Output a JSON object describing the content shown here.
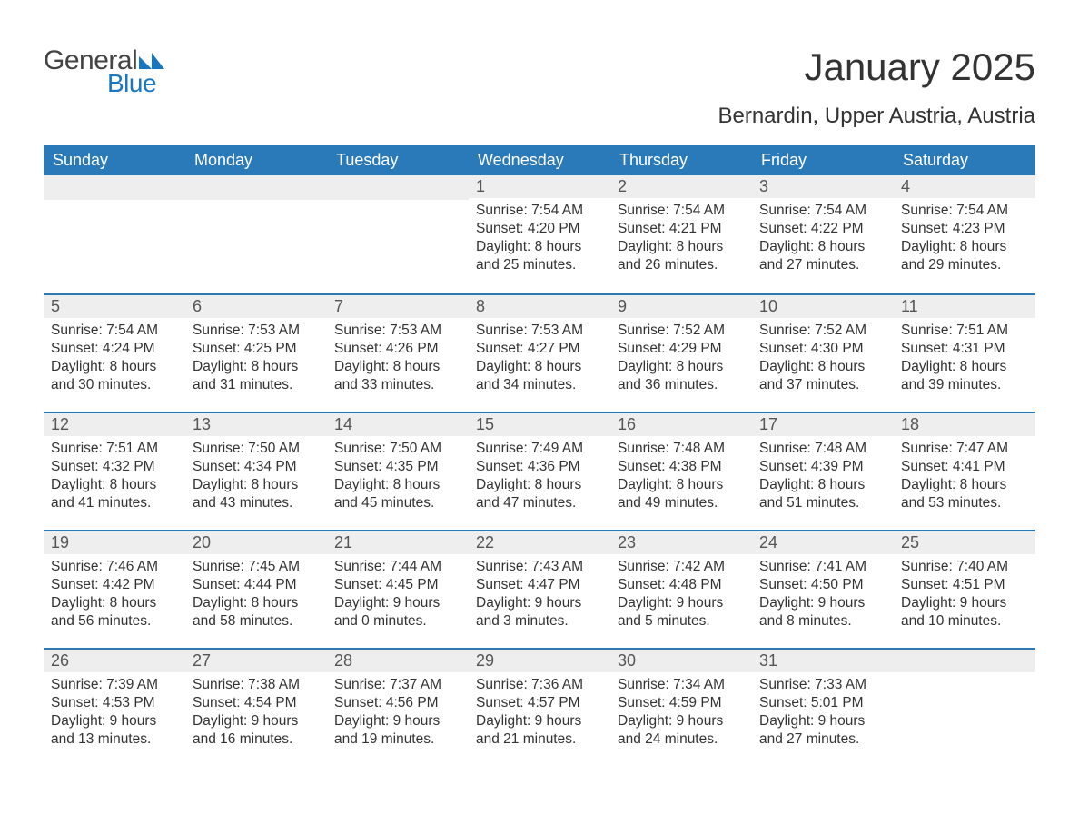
{
  "logo": {
    "text_general": "General",
    "text_blue": "Blue",
    "shape_color": "#1976c1"
  },
  "title": "January 2025",
  "subtitle": "Bernardin, Upper Austria, Austria",
  "colors": {
    "header_bg": "#2a7ab9",
    "header_text": "#ffffff",
    "daynum_bg": "#eeeeee",
    "daynum_border": "#2a7ab9",
    "body_text": "#333333",
    "page_bg": "#ffffff"
  },
  "typography": {
    "title_fontsize": 42,
    "subtitle_fontsize": 24,
    "header_fontsize": 18,
    "daynum_fontsize": 18,
    "body_fontsize": 15.5,
    "logo_fontsize": 30
  },
  "weekdays": [
    "Sunday",
    "Monday",
    "Tuesday",
    "Wednesday",
    "Thursday",
    "Friday",
    "Saturday"
  ],
  "weeks": [
    [
      null,
      null,
      null,
      {
        "n": "1",
        "sunrise": "7:54 AM",
        "sunset": "4:20 PM",
        "dh": "8",
        "dm": "25"
      },
      {
        "n": "2",
        "sunrise": "7:54 AM",
        "sunset": "4:21 PM",
        "dh": "8",
        "dm": "26"
      },
      {
        "n": "3",
        "sunrise": "7:54 AM",
        "sunset": "4:22 PM",
        "dh": "8",
        "dm": "27"
      },
      {
        "n": "4",
        "sunrise": "7:54 AM",
        "sunset": "4:23 PM",
        "dh": "8",
        "dm": "29"
      }
    ],
    [
      {
        "n": "5",
        "sunrise": "7:54 AM",
        "sunset": "4:24 PM",
        "dh": "8",
        "dm": "30"
      },
      {
        "n": "6",
        "sunrise": "7:53 AM",
        "sunset": "4:25 PM",
        "dh": "8",
        "dm": "31"
      },
      {
        "n": "7",
        "sunrise": "7:53 AM",
        "sunset": "4:26 PM",
        "dh": "8",
        "dm": "33"
      },
      {
        "n": "8",
        "sunrise": "7:53 AM",
        "sunset": "4:27 PM",
        "dh": "8",
        "dm": "34"
      },
      {
        "n": "9",
        "sunrise": "7:52 AM",
        "sunset": "4:29 PM",
        "dh": "8",
        "dm": "36"
      },
      {
        "n": "10",
        "sunrise": "7:52 AM",
        "sunset": "4:30 PM",
        "dh": "8",
        "dm": "37"
      },
      {
        "n": "11",
        "sunrise": "7:51 AM",
        "sunset": "4:31 PM",
        "dh": "8",
        "dm": "39"
      }
    ],
    [
      {
        "n": "12",
        "sunrise": "7:51 AM",
        "sunset": "4:32 PM",
        "dh": "8",
        "dm": "41"
      },
      {
        "n": "13",
        "sunrise": "7:50 AM",
        "sunset": "4:34 PM",
        "dh": "8",
        "dm": "43"
      },
      {
        "n": "14",
        "sunrise": "7:50 AM",
        "sunset": "4:35 PM",
        "dh": "8",
        "dm": "45"
      },
      {
        "n": "15",
        "sunrise": "7:49 AM",
        "sunset": "4:36 PM",
        "dh": "8",
        "dm": "47"
      },
      {
        "n": "16",
        "sunrise": "7:48 AM",
        "sunset": "4:38 PM",
        "dh": "8",
        "dm": "49"
      },
      {
        "n": "17",
        "sunrise": "7:48 AM",
        "sunset": "4:39 PM",
        "dh": "8",
        "dm": "51"
      },
      {
        "n": "18",
        "sunrise": "7:47 AM",
        "sunset": "4:41 PM",
        "dh": "8",
        "dm": "53"
      }
    ],
    [
      {
        "n": "19",
        "sunrise": "7:46 AM",
        "sunset": "4:42 PM",
        "dh": "8",
        "dm": "56"
      },
      {
        "n": "20",
        "sunrise": "7:45 AM",
        "sunset": "4:44 PM",
        "dh": "8",
        "dm": "58"
      },
      {
        "n": "21",
        "sunrise": "7:44 AM",
        "sunset": "4:45 PM",
        "dh": "9",
        "dm": "0"
      },
      {
        "n": "22",
        "sunrise": "7:43 AM",
        "sunset": "4:47 PM",
        "dh": "9",
        "dm": "3"
      },
      {
        "n": "23",
        "sunrise": "7:42 AM",
        "sunset": "4:48 PM",
        "dh": "9",
        "dm": "5"
      },
      {
        "n": "24",
        "sunrise": "7:41 AM",
        "sunset": "4:50 PM",
        "dh": "9",
        "dm": "8"
      },
      {
        "n": "25",
        "sunrise": "7:40 AM",
        "sunset": "4:51 PM",
        "dh": "9",
        "dm": "10"
      }
    ],
    [
      {
        "n": "26",
        "sunrise": "7:39 AM",
        "sunset": "4:53 PM",
        "dh": "9",
        "dm": "13"
      },
      {
        "n": "27",
        "sunrise": "7:38 AM",
        "sunset": "4:54 PM",
        "dh": "9",
        "dm": "16"
      },
      {
        "n": "28",
        "sunrise": "7:37 AM",
        "sunset": "4:56 PM",
        "dh": "9",
        "dm": "19"
      },
      {
        "n": "29",
        "sunrise": "7:36 AM",
        "sunset": "4:57 PM",
        "dh": "9",
        "dm": "21"
      },
      {
        "n": "30",
        "sunrise": "7:34 AM",
        "sunset": "4:59 PM",
        "dh": "9",
        "dm": "24"
      },
      {
        "n": "31",
        "sunrise": "7:33 AM",
        "sunset": "5:01 PM",
        "dh": "9",
        "dm": "27"
      },
      null
    ]
  ],
  "labels": {
    "sunrise_prefix": "Sunrise: ",
    "sunset_prefix": "Sunset: ",
    "daylight_prefix": "Daylight: ",
    "hours_word": " hours",
    "and_word": "and ",
    "minutes_suffix": " minutes."
  }
}
